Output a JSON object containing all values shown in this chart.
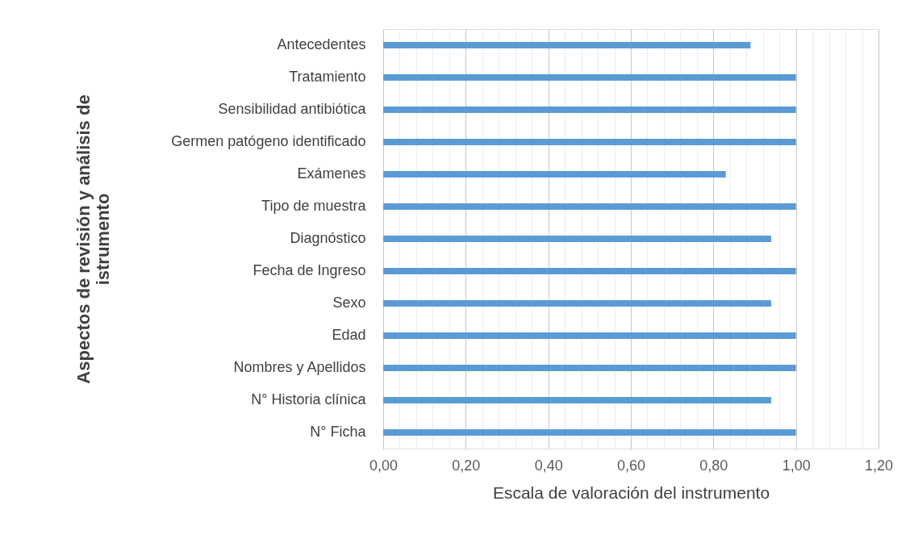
{
  "chart_data": {
    "type": "bar",
    "orientation": "horizontal",
    "xlabel": "Escala de valoración del instrumento",
    "ylabel": "Aspectos de revisión y análisis de\nistrumento",
    "categories": [
      "Antecedentes",
      "Tratamiento",
      "Sensibilidad antibiótica",
      "Germen patógeno identificado",
      "Exámenes",
      "Tipo de muestra",
      "Diagnóstico",
      "Fecha de Ingreso",
      "Sexo",
      "Edad",
      "Nombres y Apellidos",
      "N° Historia clínica",
      "N° Ficha"
    ],
    "values": [
      0.89,
      1.0,
      1.0,
      1.0,
      0.83,
      1.0,
      0.94,
      1.0,
      0.94,
      1.0,
      1.0,
      0.94,
      1.0
    ],
    "color": "#5b9bd5",
    "xlim": [
      0,
      1.2
    ],
    "xticks": [
      {
        "value": 0,
        "label": "0,00"
      },
      {
        "value": 0.04,
        "label": null
      },
      {
        "value": 0.08,
        "label": null
      },
      {
        "value": 0.12,
        "label": null
      },
      {
        "value": 0.16,
        "label": null
      },
      {
        "value": 0.2,
        "label": "0,20"
      },
      {
        "value": 0.24,
        "label": null
      },
      {
        "value": 0.28,
        "label": null
      },
      {
        "value": 0.32,
        "label": null
      },
      {
        "value": 0.36,
        "label": null
      },
      {
        "value": 0.4,
        "label": "0,40"
      },
      {
        "value": 0.44,
        "label": null
      },
      {
        "value": 0.48,
        "label": null
      },
      {
        "value": 0.52,
        "label": null
      },
      {
        "value": 0.56,
        "label": null
      },
      {
        "value": 0.6,
        "label": "0,60"
      },
      {
        "value": 0.64,
        "label": null
      },
      {
        "value": 0.68,
        "label": null
      },
      {
        "value": 0.72,
        "label": null
      },
      {
        "value": 0.76,
        "label": null
      },
      {
        "value": 0.8,
        "label": "0,80"
      },
      {
        "value": 0.84,
        "label": null
      },
      {
        "value": 0.88,
        "label": null
      },
      {
        "value": 0.92,
        "label": null
      },
      {
        "value": 0.96,
        "label": null
      },
      {
        "value": 1.0,
        "label": "1,00"
      },
      {
        "value": 1.04,
        "label": null
      },
      {
        "value": 1.08,
        "label": null
      },
      {
        "value": 1.12,
        "label": null
      },
      {
        "value": 1.16,
        "label": null
      },
      {
        "value": 1.2,
        "label": "1,20"
      }
    ],
    "grid": "x"
  }
}
